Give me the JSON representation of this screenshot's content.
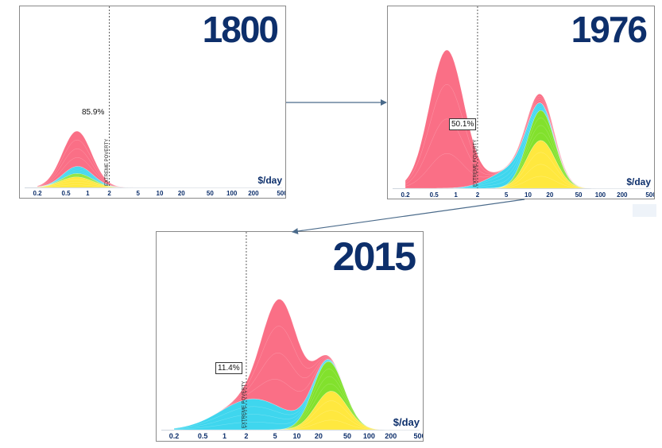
{
  "chart_data": [
    {
      "type": "area",
      "title": "1800",
      "xlabel": "$/day",
      "x_scale": "log",
      "ticks": [
        0.2,
        0.5,
        1,
        2,
        5,
        10,
        20,
        50,
        100,
        200,
        500
      ],
      "tick_labels": [
        "0.2",
        "0.5",
        "1",
        "2",
        "5",
        "10",
        "20",
        "50",
        "100",
        "200",
        "500"
      ],
      "poverty_line": 2,
      "poverty_label": "EXTREME POVERTY",
      "poverty_share": "85.9%",
      "series": [
        {
          "color": "#ffe83f",
          "peak_x": 0.7,
          "peak": 0.06,
          "width": 0.22
        },
        {
          "color": "#82e12d",
          "peak_x": 0.75,
          "peak": 0.02,
          "width": 0.2
        },
        {
          "color": "#3fd6ee",
          "peak_x": 0.75,
          "peak": 0.04,
          "width": 0.2
        },
        {
          "color": "#fa6f86",
          "peak_x": 0.7,
          "peak": 0.2,
          "width": 0.2
        }
      ]
    },
    {
      "type": "area",
      "title": "1976",
      "xlabel": "$/day",
      "x_scale": "log",
      "ticks": [
        0.2,
        0.5,
        1,
        2,
        5,
        10,
        20,
        50,
        100,
        200,
        500
      ],
      "tick_labels": [
        "0.2",
        "0.5",
        "1",
        "2",
        "5",
        "10",
        "20",
        "50",
        "100",
        "200",
        "500"
      ],
      "poverty_line": 2,
      "poverty_label": "EXTREME POVERTY",
      "poverty_share": "50.1%",
      "series": [
        {
          "color": "#ffe83f",
          "peak_x": 15,
          "peak": 0.27,
          "width": 0.2
        },
        {
          "color": "#82e12d",
          "peak_x": 15,
          "peak": 0.17,
          "width": 0.18
        },
        {
          "color": "#3fd6ee",
          "peak_x": 6,
          "peak": 0.1,
          "width": 0.3
        },
        {
          "color": "#fa6f86",
          "peak_x": 0.75,
          "peak": 0.78,
          "width": 0.24
        },
        {
          "color": "#fa6f86",
          "peak_x": 14,
          "peak": 0.05,
          "width": 0.2
        }
      ]
    },
    {
      "type": "area",
      "title": "2015",
      "xlabel": "$/day",
      "x_scale": "log",
      "ticks": [
        0.2,
        0.5,
        1,
        2,
        5,
        10,
        20,
        50,
        100,
        200,
        500
      ],
      "tick_labels": [
        "0.2",
        "0.5",
        "1",
        "2",
        "5",
        "10",
        "20",
        "50",
        "100",
        "200",
        "500"
      ],
      "poverty_line": 2,
      "poverty_label": "EXTREME POVERTY",
      "poverty_share": "11.4%",
      "series": [
        {
          "color": "#ffe83f",
          "peak_x": 30,
          "peak": 0.2,
          "width": 0.22
        },
        {
          "color": "#82e12d",
          "peak_x": 25,
          "peak": 0.16,
          "width": 0.2
        },
        {
          "color": "#3fd6ee",
          "peak_x": 2.5,
          "peak": 0.16,
          "width": 0.45
        },
        {
          "color": "#fa6f86",
          "peak_x": 6,
          "peak": 0.56,
          "width": 0.25
        }
      ]
    }
  ]
}
